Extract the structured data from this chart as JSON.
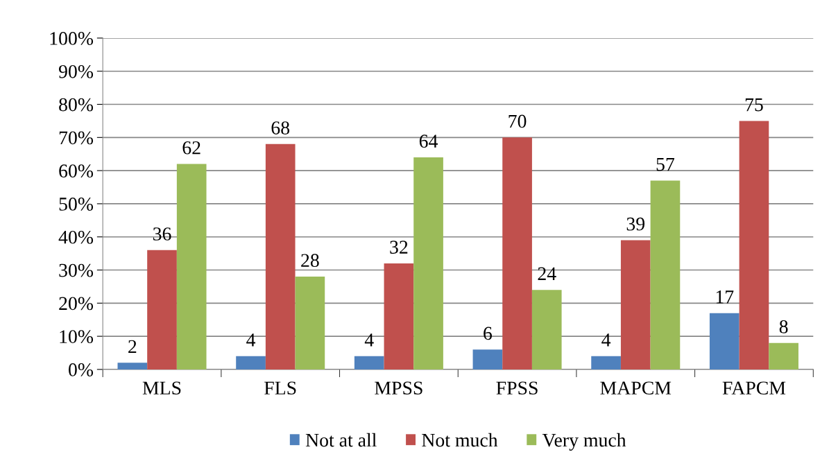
{
  "chart_data": {
    "type": "bar",
    "categories": [
      "MLS",
      "FLS",
      "MPSS",
      "FPSS",
      "MAPCM",
      "FAPCM"
    ],
    "series": [
      {
        "name": "Not at all",
        "color": "#4f81bd",
        "values": [
          2,
          4,
          4,
          6,
          4,
          17
        ]
      },
      {
        "name": "Not much",
        "color": "#c0504d",
        "values": [
          36,
          68,
          32,
          70,
          39,
          75
        ]
      },
      {
        "name": "Very much",
        "color": "#9bbb59",
        "values": [
          62,
          28,
          64,
          24,
          57,
          8
        ]
      }
    ],
    "ylim": [
      0,
      100
    ],
    "yticks": [
      {
        "value": 0,
        "label": "0%"
      },
      {
        "value": 10,
        "label": "10%"
      },
      {
        "value": 20,
        "label": "20%"
      },
      {
        "value": 30,
        "label": "30%"
      },
      {
        "value": 40,
        "label": "40%"
      },
      {
        "value": 50,
        "label": "50%"
      },
      {
        "value": 60,
        "label": "60%"
      },
      {
        "value": 70,
        "label": "70%"
      },
      {
        "value": 80,
        "label": "80%"
      },
      {
        "value": 90,
        "label": "90%"
      },
      {
        "value": 100,
        "label": "100%"
      }
    ],
    "grid": "y",
    "legend": "bottom",
    "data_labels": true
  }
}
